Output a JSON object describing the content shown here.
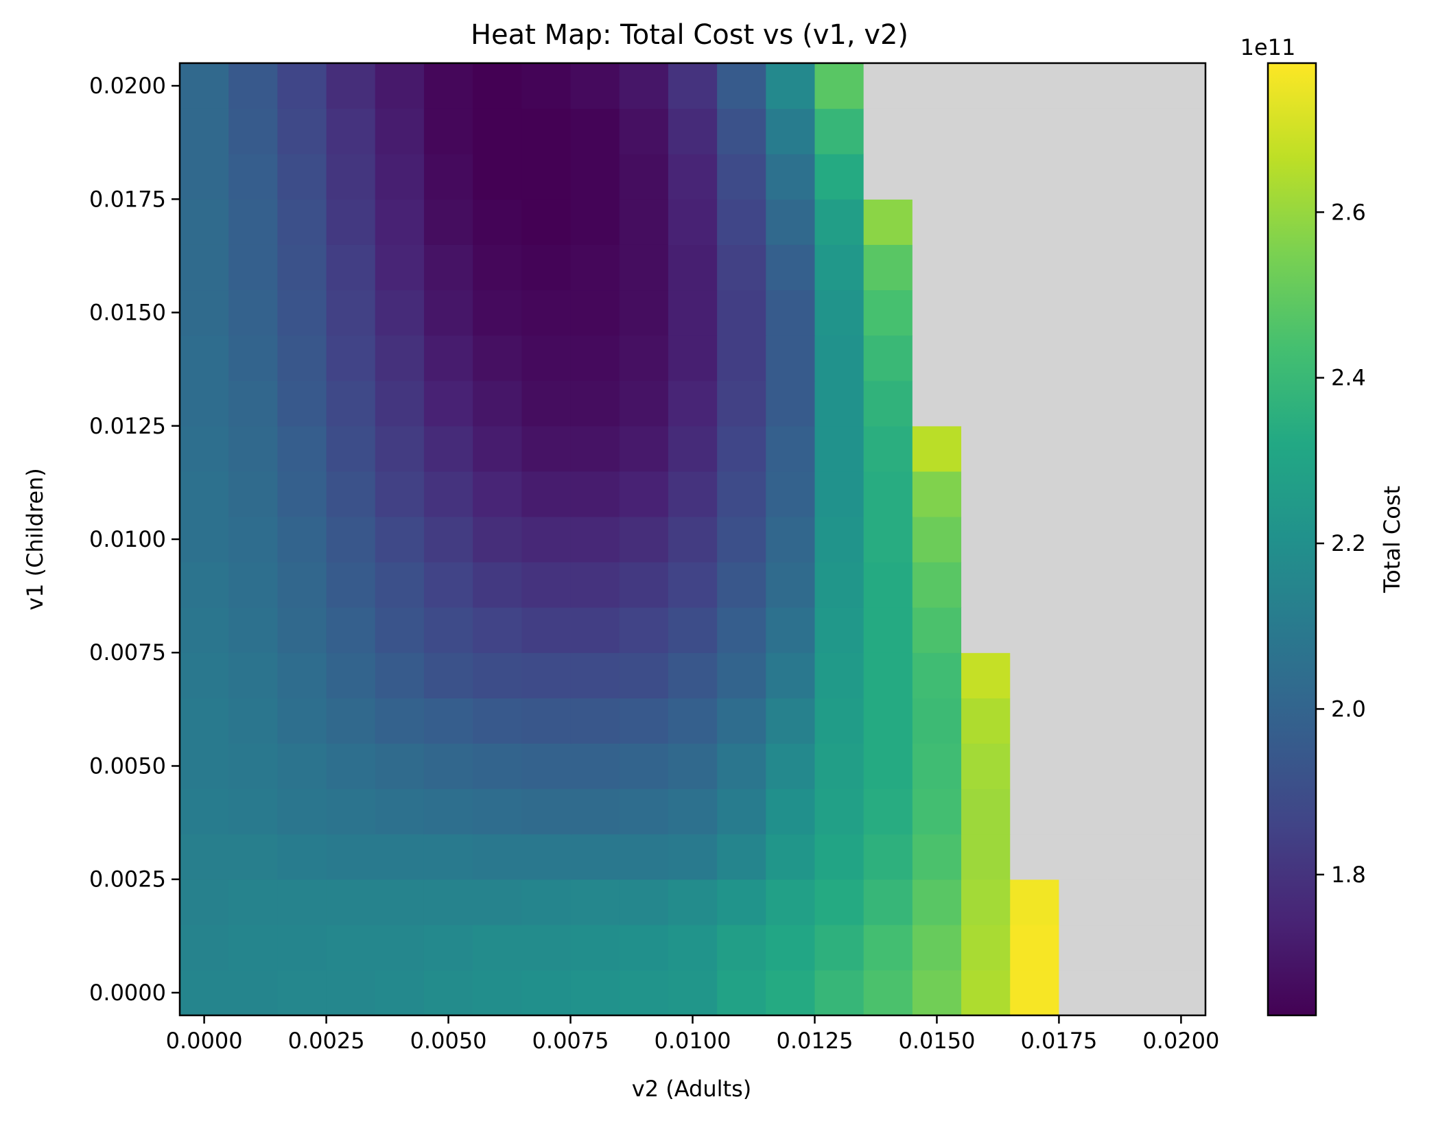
{
  "figure": {
    "title": "Heat Map: Total Cost vs (v1, v2)",
    "xlabel": "v2 (Adults)",
    "ylabel": "v1 (Children)",
    "colorbar_label": "Total Cost",
    "colorbar_offset_text": "1e11"
  },
  "chart_data": {
    "type": "heatmap",
    "title": "Heat Map: Total Cost vs (v1, v2)",
    "xlabel": "v2 (Adults)",
    "ylabel": "v1 (Children)",
    "colormap": "viridis",
    "missing_color": "#d3d3d3",
    "x_values": [
      0.0,
      0.001,
      0.002,
      0.003,
      0.004,
      0.005,
      0.006,
      0.007,
      0.008,
      0.009,
      0.01,
      0.011,
      0.012,
      0.013,
      0.014,
      0.015,
      0.016,
      0.017,
      0.018,
      0.019,
      0.02
    ],
    "y_values": [
      0.0,
      0.001,
      0.002,
      0.003,
      0.004,
      0.005,
      0.006,
      0.007,
      0.008,
      0.009,
      0.01,
      0.011,
      0.012,
      0.013,
      0.014,
      0.015,
      0.016,
      0.017,
      0.018,
      0.019,
      0.02
    ],
    "xlim": [
      -0.0005,
      0.0205
    ],
    "ylim": [
      -0.0005,
      0.0205
    ],
    "xticks": [
      0.0,
      0.0025,
      0.005,
      0.0075,
      0.01,
      0.0125,
      0.015,
      0.0175,
      0.02
    ],
    "xtick_labels": [
      "0.0000",
      "0.0025",
      "0.0050",
      "0.0075",
      "0.0100",
      "0.0125",
      "0.0150",
      "0.0175",
      "0.0200"
    ],
    "yticks": [
      0.0,
      0.0025,
      0.005,
      0.0075,
      0.01,
      0.0125,
      0.015,
      0.0175,
      0.02
    ],
    "ytick_labels": [
      "0.0000",
      "0.0025",
      "0.0050",
      "0.0075",
      "0.0100",
      "0.0125",
      "0.0150",
      "0.0175",
      "0.0200"
    ],
    "colorbar": {
      "label": "Total Cost",
      "range": [
        1.63,
        2.78
      ],
      "multiplier": "1e11",
      "ticks": [
        1.8,
        2.0,
        2.2,
        2.4,
        2.6
      ],
      "tick_labels": [
        "1.8",
        "2.0",
        "2.2",
        "2.4",
        "2.6"
      ]
    },
    "values_unit": "1e11",
    "values": [
      [
        2.15,
        2.15,
        2.16,
        2.16,
        2.17,
        2.18,
        2.19,
        2.2,
        2.21,
        2.22,
        2.23,
        2.29,
        2.33,
        2.39,
        2.45,
        2.53,
        2.64,
        2.77,
        null,
        null,
        null
      ],
      [
        2.14,
        2.15,
        2.15,
        2.16,
        2.16,
        2.17,
        2.18,
        2.18,
        2.19,
        2.2,
        2.22,
        2.27,
        2.31,
        2.36,
        2.43,
        2.51,
        2.63,
        2.77,
        null,
        null,
        null
      ],
      [
        2.13,
        2.14,
        2.14,
        2.14,
        2.14,
        2.14,
        2.14,
        2.15,
        2.16,
        2.16,
        2.18,
        2.22,
        2.28,
        2.33,
        2.39,
        2.48,
        2.62,
        2.76,
        null,
        null,
        null
      ],
      [
        2.12,
        2.12,
        2.11,
        2.1,
        2.1,
        2.1,
        2.09,
        2.09,
        2.09,
        2.09,
        2.1,
        2.15,
        2.23,
        2.3,
        2.36,
        2.45,
        2.61,
        null,
        null,
        null,
        null
      ],
      [
        2.11,
        2.1,
        2.08,
        2.07,
        2.06,
        2.05,
        2.04,
        2.03,
        2.03,
        2.04,
        2.06,
        2.11,
        2.2,
        2.28,
        2.34,
        2.43,
        2.61,
        null,
        null,
        null,
        null
      ],
      [
        2.1,
        2.09,
        2.07,
        2.05,
        2.03,
        2.01,
        2.0,
        1.99,
        1.99,
        2.0,
        2.02,
        2.08,
        2.17,
        2.27,
        2.33,
        2.42,
        2.62,
        null,
        null,
        null,
        null
      ],
      [
        2.1,
        2.08,
        2.05,
        2.02,
        1.99,
        1.97,
        1.95,
        1.94,
        1.94,
        1.95,
        1.98,
        2.04,
        2.13,
        2.26,
        2.33,
        2.41,
        2.64,
        null,
        null,
        null,
        null
      ],
      [
        2.09,
        2.07,
        2.04,
        2.0,
        1.96,
        1.92,
        1.9,
        1.89,
        1.89,
        1.9,
        1.94,
        2.0,
        2.09,
        2.25,
        2.33,
        2.42,
        2.68,
        null,
        null,
        null,
        null
      ],
      [
        2.08,
        2.06,
        2.02,
        1.98,
        1.93,
        1.89,
        1.86,
        1.84,
        1.84,
        1.86,
        1.9,
        1.97,
        2.06,
        2.24,
        2.33,
        2.45,
        null,
        null,
        null,
        null,
        null
      ],
      [
        2.07,
        2.05,
        2.01,
        1.96,
        1.91,
        1.86,
        1.82,
        1.8,
        1.8,
        1.82,
        1.86,
        1.94,
        2.03,
        2.23,
        2.33,
        2.48,
        null,
        null,
        null,
        null,
        null
      ],
      [
        2.06,
        2.04,
        2.0,
        1.94,
        1.88,
        1.83,
        1.78,
        1.76,
        1.76,
        1.78,
        1.83,
        1.91,
        2.01,
        2.22,
        2.34,
        2.52,
        null,
        null,
        null,
        null,
        null
      ],
      [
        2.06,
        2.03,
        1.98,
        1.92,
        1.85,
        1.8,
        1.75,
        1.72,
        1.72,
        1.74,
        1.8,
        1.89,
        1.99,
        2.21,
        2.34,
        2.56,
        null,
        null,
        null,
        null,
        null
      ],
      [
        2.05,
        2.02,
        1.97,
        1.9,
        1.83,
        1.77,
        1.72,
        1.69,
        1.69,
        1.71,
        1.77,
        1.87,
        1.98,
        2.21,
        2.35,
        2.66,
        null,
        null,
        null,
        null,
        null
      ],
      [
        2.04,
        2.01,
        1.95,
        1.88,
        1.81,
        1.74,
        1.7,
        1.67,
        1.67,
        1.69,
        1.75,
        1.85,
        1.96,
        2.21,
        2.37,
        null,
        null,
        null,
        null,
        null,
        null
      ],
      [
        2.04,
        2.0,
        1.94,
        1.86,
        1.79,
        1.72,
        1.68,
        1.66,
        1.66,
        1.68,
        1.73,
        1.84,
        1.96,
        2.21,
        2.4,
        null,
        null,
        null,
        null,
        null,
        null
      ],
      [
        2.03,
        1.99,
        1.93,
        1.85,
        1.77,
        1.7,
        1.66,
        1.65,
        1.65,
        1.67,
        1.73,
        1.84,
        1.96,
        2.22,
        2.44,
        null,
        null,
        null,
        null,
        null,
        null
      ],
      [
        2.03,
        1.98,
        1.92,
        1.84,
        1.75,
        1.69,
        1.65,
        1.64,
        1.65,
        1.67,
        1.73,
        1.85,
        1.98,
        2.24,
        2.48,
        null,
        null,
        null,
        null,
        null,
        null
      ],
      [
        2.03,
        1.98,
        1.91,
        1.82,
        1.74,
        1.67,
        1.64,
        1.63,
        1.64,
        1.67,
        1.74,
        1.87,
        2.02,
        2.27,
        2.58,
        null,
        null,
        null,
        null,
        null,
        null
      ],
      [
        2.02,
        1.97,
        1.9,
        1.81,
        1.73,
        1.66,
        1.63,
        1.63,
        1.64,
        1.67,
        1.75,
        1.89,
        2.06,
        2.33,
        null,
        null,
        null,
        null,
        null,
        null,
        null
      ],
      [
        2.02,
        1.96,
        1.88,
        1.8,
        1.72,
        1.65,
        1.63,
        1.63,
        1.64,
        1.68,
        1.77,
        1.92,
        2.11,
        2.39,
        null,
        null,
        null,
        null,
        null,
        null,
        null
      ],
      [
        2.02,
        1.95,
        1.87,
        1.78,
        1.71,
        1.65,
        1.63,
        1.64,
        1.66,
        1.7,
        1.8,
        1.96,
        2.17,
        2.48,
        null,
        null,
        null,
        null,
        null,
        null,
        null
      ]
    ]
  }
}
